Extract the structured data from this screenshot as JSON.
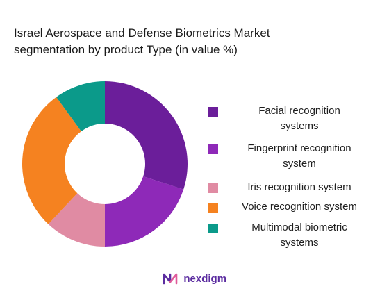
{
  "title_lines": [
    "Israel Aerospace and Defense Biometrics Market",
    "segmentation by product Type (in value %)"
  ],
  "chart_data": {
    "type": "pie",
    "donut": true,
    "title": "Israel Aerospace and Defense Biometrics Market segmentation by product Type (in value %)",
    "legend_position": "right",
    "series": [
      {
        "name": "Facial recognition systems",
        "value": 30,
        "color": "#6b1e9a"
      },
      {
        "name": "Fingerprint recognition system",
        "value": 20,
        "color": "#8e29b8"
      },
      {
        "name": "Iris recognition system",
        "value": 12,
        "color": "#e08ba3"
      },
      {
        "name": "Voice recognition system",
        "value": 28,
        "color": "#f58220"
      },
      {
        "name": "Multimodal biometric systems",
        "value": 10,
        "color": "#0b9a8a"
      }
    ]
  },
  "legend": [
    {
      "lines": [
        "Facial recognition",
        "systems"
      ],
      "color": "#6b1e9a"
    },
    {
      "lines": [
        "Fingerprint recognition",
        "system"
      ],
      "color": "#8e29b8"
    },
    {
      "lines": [
        "Iris recognition system"
      ],
      "color": "#e08ba3"
    },
    {
      "lines": [
        "Voice recognition system"
      ],
      "color": "#f58220"
    },
    {
      "lines": [
        "Multimodal biometric",
        "systems"
      ],
      "color": "#0b9a8a"
    }
  ],
  "logo": {
    "text": "nexdigm",
    "color": "#5b2ca0"
  }
}
